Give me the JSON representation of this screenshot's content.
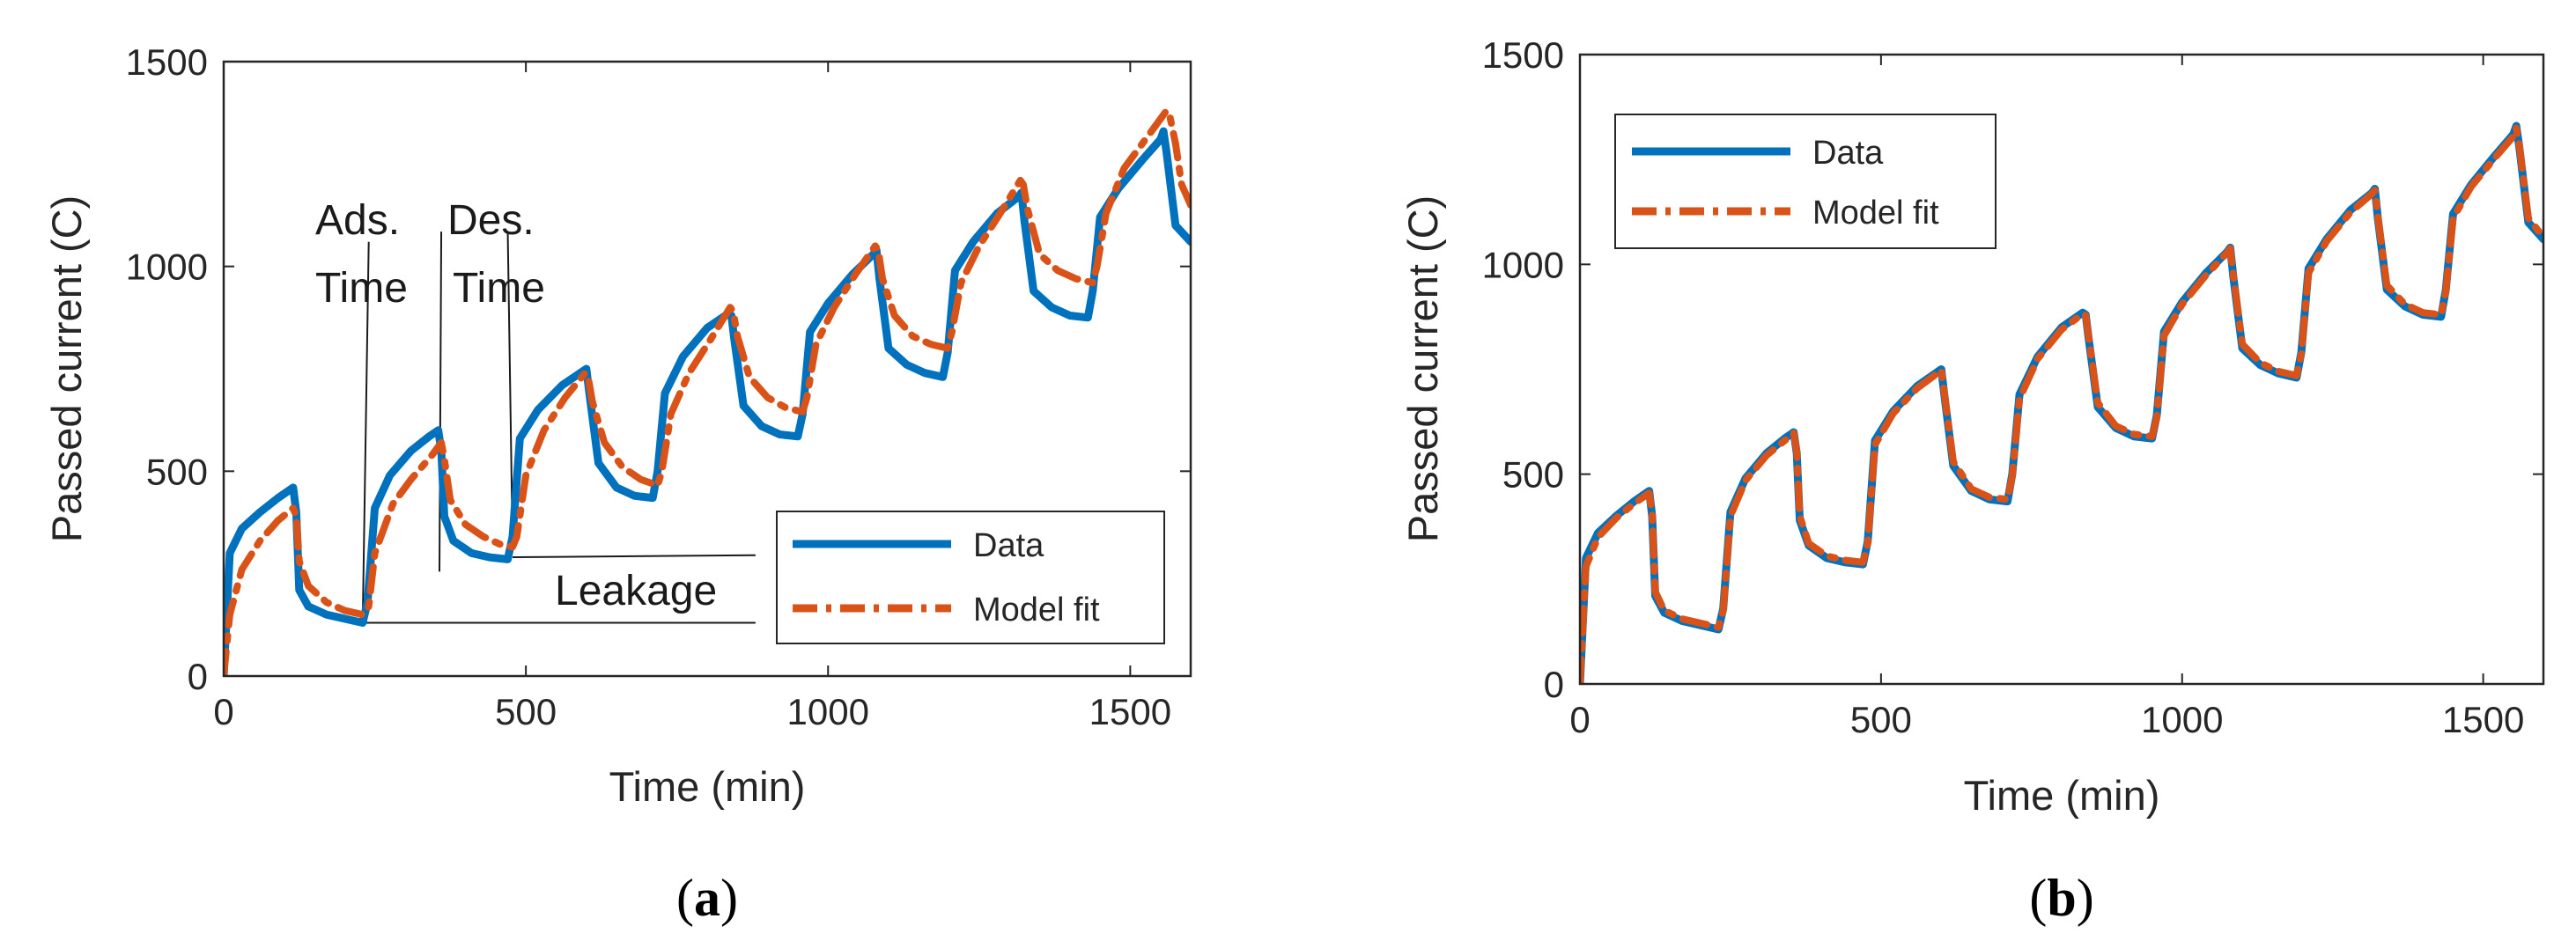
{
  "colors": {
    "data": "#0072BD",
    "model": "#D95319",
    "axis": "#262626"
  },
  "chart_data": [
    {
      "id": "a",
      "type": "line",
      "panel_label": "a",
      "xlabel": "Time (min)",
      "ylabel": "Passed current (C)",
      "xlim": [
        0,
        1600
      ],
      "ylim": [
        0,
        1500
      ],
      "xticks": [
        0,
        500,
        1000,
        1500
      ],
      "yticks": [
        0,
        500,
        1000,
        1500
      ],
      "legend": {
        "position": "bottom-right",
        "entries": [
          "Data",
          "Model fit"
        ]
      },
      "annotations": [
        {
          "text_lines": [
            "Ads.",
            "Time"
          ],
          "x": 230,
          "y": 1115
        },
        {
          "text_lines": [
            "Des.",
            "Time"
          ],
          "x": 380,
          "y": 1115
        },
        {
          "text": "Leakage",
          "x": 730,
          "y": 200
        }
      ],
      "series": [
        {
          "name": "Data",
          "x": [
            0,
            10,
            30,
            60,
            90,
            115,
            120,
            125,
            140,
            170,
            200,
            230,
            238,
            250,
            275,
            310,
            340,
            355,
            360,
            365,
            380,
            410,
            440,
            470,
            478,
            490,
            520,
            560,
            595,
            600,
            605,
            620,
            650,
            680,
            710,
            718,
            730,
            760,
            800,
            835,
            840,
            845,
            860,
            890,
            920,
            950,
            958,
            970,
            1000,
            1040,
            1075,
            1080,
            1085,
            1100,
            1130,
            1160,
            1190,
            1198,
            1210,
            1240,
            1280,
            1315,
            1320,
            1325,
            1340,
            1370,
            1400,
            1430,
            1438,
            1450,
            1480,
            1520,
            1550,
            1555,
            1560,
            1575,
            1600
          ],
          "y": [
            0,
            300,
            360,
            400,
            435,
            460,
            400,
            210,
            170,
            150,
            140,
            130,
            180,
            410,
            490,
            550,
            585,
            600,
            550,
            390,
            330,
            300,
            290,
            285,
            340,
            580,
            650,
            710,
            745,
            750,
            690,
            520,
            460,
            440,
            435,
            500,
            690,
            780,
            850,
            885,
            880,
            820,
            660,
            610,
            590,
            585,
            640,
            840,
            910,
            980,
            1030,
            1040,
            970,
            800,
            760,
            740,
            730,
            790,
            990,
            1060,
            1130,
            1170,
            1180,
            1110,
            940,
            900,
            880,
            875,
            940,
            1120,
            1190,
            1260,
            1310,
            1330,
            1280,
            1100,
            1060
          ]
        },
        {
          "name": "Model fit",
          "x": [
            0,
            10,
            30,
            60,
            90,
            115,
            120,
            125,
            140,
            170,
            200,
            230,
            240,
            250,
            280,
            310,
            345,
            360,
            365,
            375,
            400,
            430,
            460,
            478,
            485,
            500,
            530,
            565,
            598,
            603,
            610,
            630,
            660,
            690,
            718,
            725,
            740,
            770,
            805,
            838,
            843,
            850,
            870,
            900,
            930,
            958,
            965,
            980,
            1010,
            1045,
            1078,
            1083,
            1090,
            1110,
            1140,
            1170,
            1198,
            1205,
            1220,
            1250,
            1285,
            1318,
            1323,
            1330,
            1350,
            1380,
            1410,
            1438,
            1445,
            1460,
            1490,
            1530,
            1560,
            1565,
            1575,
            1585,
            1600
          ],
          "y": [
            0,
            150,
            260,
            330,
            380,
            410,
            390,
            280,
            220,
            180,
            160,
            150,
            170,
            300,
            420,
            480,
            540,
            570,
            530,
            430,
            370,
            340,
            320,
            315,
            340,
            490,
            600,
            680,
            740,
            730,
            670,
            570,
            510,
            480,
            465,
            500,
            640,
            740,
            820,
            900,
            890,
            830,
            730,
            680,
            655,
            645,
            680,
            810,
            900,
            980,
            1050,
            1040,
            970,
            880,
            830,
            810,
            800,
            840,
            960,
            1050,
            1130,
            1210,
            1200,
            1140,
            1030,
            990,
            970,
            960,
            1000,
            1130,
            1240,
            1320,
            1380,
            1370,
            1300,
            1200,
            1150
          ]
        }
      ]
    },
    {
      "id": "b",
      "type": "line",
      "panel_label": "b",
      "xlabel": "Time (min)",
      "ylabel": "Passed current (C)",
      "xlim": [
        0,
        1600
      ],
      "ylim": [
        0,
        1500
      ],
      "xticks": [
        0,
        500,
        1000,
        1500
      ],
      "yticks": [
        0,
        500,
        1000,
        1500
      ],
      "legend": {
        "position": "top-left",
        "entries": [
          "Data",
          "Model fit"
        ]
      },
      "series": [
        {
          "name": "Data",
          "x": [
            0,
            10,
            30,
            60,
            90,
            115,
            120,
            125,
            140,
            170,
            200,
            230,
            238,
            250,
            275,
            310,
            340,
            355,
            360,
            365,
            380,
            410,
            440,
            470,
            478,
            490,
            520,
            560,
            595,
            600,
            605,
            620,
            650,
            680,
            710,
            718,
            730,
            760,
            800,
            835,
            840,
            845,
            860,
            890,
            920,
            950,
            958,
            970,
            1000,
            1040,
            1075,
            1080,
            1085,
            1100,
            1130,
            1160,
            1190,
            1198,
            1210,
            1240,
            1280,
            1315,
            1320,
            1325,
            1340,
            1370,
            1400,
            1430,
            1438,
            1450,
            1480,
            1520,
            1550,
            1555,
            1560,
            1575,
            1600
          ],
          "y": [
            0,
            300,
            360,
            400,
            435,
            460,
            400,
            210,
            170,
            150,
            140,
            130,
            180,
            410,
            490,
            550,
            585,
            600,
            550,
            390,
            330,
            300,
            290,
            285,
            340,
            580,
            650,
            710,
            745,
            750,
            690,
            520,
            460,
            440,
            435,
            500,
            690,
            780,
            850,
            885,
            880,
            820,
            660,
            610,
            590,
            585,
            640,
            840,
            910,
            980,
            1030,
            1040,
            970,
            800,
            760,
            740,
            730,
            790,
            990,
            1060,
            1130,
            1170,
            1180,
            1110,
            940,
            900,
            880,
            875,
            940,
            1120,
            1190,
            1260,
            1310,
            1330,
            1280,
            1100,
            1060
          ]
        },
        {
          "name": "Model fit",
          "x": [
            0,
            10,
            30,
            60,
            90,
            115,
            120,
            125,
            140,
            170,
            200,
            230,
            238,
            250,
            275,
            310,
            340,
            355,
            360,
            365,
            380,
            410,
            440,
            470,
            478,
            490,
            520,
            560,
            595,
            600,
            605,
            620,
            650,
            680,
            710,
            718,
            730,
            760,
            800,
            835,
            840,
            845,
            860,
            890,
            920,
            950,
            958,
            970,
            1000,
            1040,
            1075,
            1080,
            1085,
            1100,
            1130,
            1160,
            1190,
            1198,
            1210,
            1240,
            1280,
            1315,
            1320,
            1325,
            1340,
            1370,
            1400,
            1430,
            1438,
            1450,
            1480,
            1520,
            1550,
            1555,
            1560,
            1575,
            1600
          ],
          "y": [
            0,
            280,
            350,
            395,
            430,
            455,
            405,
            220,
            175,
            155,
            145,
            135,
            175,
            400,
            485,
            545,
            580,
            598,
            555,
            400,
            335,
            305,
            295,
            290,
            335,
            570,
            645,
            705,
            742,
            748,
            695,
            530,
            465,
            445,
            440,
            495,
            680,
            775,
            845,
            882,
            878,
            825,
            670,
            615,
            595,
            590,
            635,
            830,
            905,
            975,
            1028,
            1038,
            975,
            810,
            765,
            745,
            735,
            785,
            980,
            1055,
            1125,
            1168,
            1176,
            1115,
            950,
            905,
            885,
            880,
            935,
            1110,
            1185,
            1255,
            1305,
            1325,
            1285,
            1110,
            1065
          ]
        }
      ]
    }
  ]
}
